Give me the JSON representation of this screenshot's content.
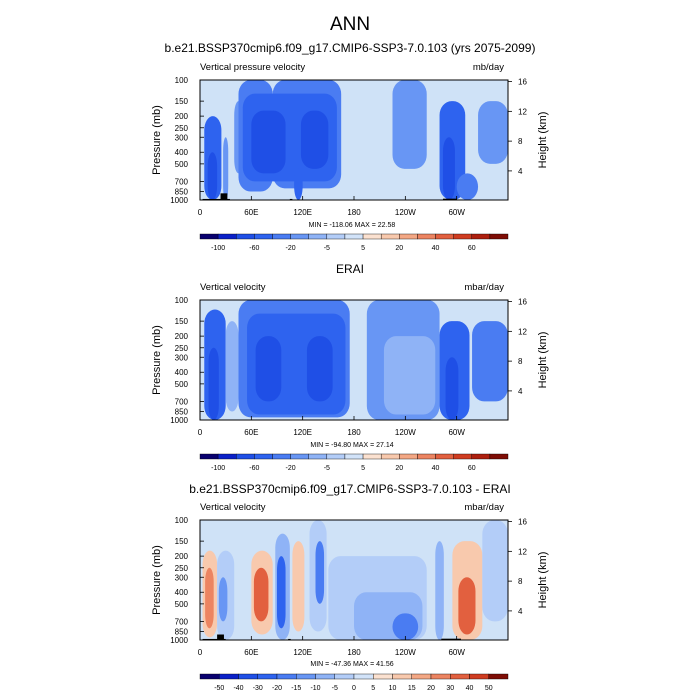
{
  "figure": {
    "title": "ANN"
  },
  "colors": {
    "neutral": "#cfe2f7",
    "frame": "#000000"
  },
  "panels": [
    {
      "title": "b.e21.BSSP370cmip6.f09_g17.CMIP6-SSP3-7.0.103 (yrs 2075-2099)",
      "variable_label": "Vertical pressure velocity",
      "units_label": "mb/day",
      "minmax_label": "MIN = -118.06  MAX = 22.58",
      "colorbar": {
        "labels": [
          "-100",
          "-60",
          "-20",
          "-5",
          "5",
          "20",
          "40",
          "60"
        ],
        "colors": [
          "#08006e",
          "#0a20c8",
          "#1f4fe6",
          "#2e63ef",
          "#4a7cf2",
          "#6896f4",
          "#8fb3f6",
          "#b3cdf8",
          "#d2e3f9",
          "#fbe1d0",
          "#f8c9ad",
          "#f3a784",
          "#ec8461",
          "#e2603f",
          "#cf3c20",
          "#ad1f0e",
          "#7e0d05"
        ]
      }
    },
    {
      "title": "ERAI",
      "variable_label": "Vertical velocity",
      "units_label": "mbar/day",
      "minmax_label": "MIN = -94.80  MAX = 27.14",
      "colorbar": {
        "labels": [
          "-100",
          "-60",
          "-20",
          "-5",
          "5",
          "20",
          "40",
          "60"
        ],
        "colors": [
          "#08006e",
          "#0a20c8",
          "#1f4fe6",
          "#2e63ef",
          "#4a7cf2",
          "#6896f4",
          "#8fb3f6",
          "#b3cdf8",
          "#d2e3f9",
          "#fbe1d0",
          "#f8c9ad",
          "#f3a784",
          "#ec8461",
          "#e2603f",
          "#cf3c20",
          "#ad1f0e",
          "#7e0d05"
        ]
      }
    },
    {
      "title": "b.e21.BSSP370cmip6.f09_g17.CMIP6-SSP3-7.0.103 - ERAI",
      "variable_label": "Vertical velocity",
      "units_label": "mbar/day",
      "minmax_label": "MIN = -47.36  MAX = 41.56",
      "colorbar": {
        "labels": [
          "-50",
          "-40",
          "-30",
          "-20",
          "-15",
          "-10",
          "-5",
          "0",
          "5",
          "10",
          "15",
          "20",
          "30",
          "40",
          "50"
        ],
        "colors": [
          "#08006e",
          "#0a20c8",
          "#1f4fe6",
          "#2e63ef",
          "#4a7cf2",
          "#6896f4",
          "#8fb3f6",
          "#b3cdf8",
          "#d2e3f9",
          "#fbe1d0",
          "#f8c9ad",
          "#f3a784",
          "#ec8461",
          "#e2603f",
          "#cf3c20",
          "#7e0d05"
        ]
      }
    }
  ],
  "chart_data": [
    {
      "type": "heatmap",
      "title": "b.e21.BSSP370cmip6.f09_g17.CMIP6-SSP3-7.0.103 (yrs 2075-2099)",
      "ylabel": "Pressure (mb)",
      "ylabel_right": "Height (km)",
      "x_tick_labels": [
        "0",
        "60E",
        "120E",
        "180",
        "120W",
        "60W"
      ],
      "x_ticks_deg": [
        0,
        60,
        120,
        180,
        240,
        300
      ],
      "xlim": [
        0,
        360
      ],
      "y_tick_labels": [
        "100",
        "150",
        "200",
        "250",
        "300",
        "400",
        "500",
        "700",
        "850",
        "1000"
      ],
      "y_ticks_mb": [
        100,
        150,
        200,
        250,
        300,
        400,
        500,
        700,
        850,
        1000
      ],
      "ylim_mb": [
        100,
        1000
      ],
      "y2_tick_labels": [
        "16",
        "12",
        "8",
        "4"
      ],
      "y2_ticks_km": [
        16,
        12,
        8,
        4
      ],
      "min": -118.06,
      "max": 22.58,
      "regions": [
        {
          "lon": [
            5,
            25
          ],
          "p": [
            200,
            1000
          ],
          "v": -20
        },
        {
          "lon": [
            9,
            20
          ],
          "p": [
            400,
            1000
          ],
          "v": -60
        },
        {
          "lon": [
            27,
            33
          ],
          "p": [
            300,
            1000
          ],
          "v": 5
        },
        {
          "lon": [
            40,
            50
          ],
          "p": [
            150,
            600
          ],
          "v": 5
        },
        {
          "lon": [
            45,
            85
          ],
          "p": [
            100,
            850
          ],
          "v": -5
        },
        {
          "lon": [
            85,
            165
          ],
          "p": [
            100,
            800
          ],
          "v": -5
        },
        {
          "lon": [
            50,
            160
          ],
          "p": [
            130,
            700
          ],
          "v": -20
        },
        {
          "lon": [
            60,
            100
          ],
          "p": [
            180,
            600
          ],
          "v": -60
        },
        {
          "lon": [
            118,
            150
          ],
          "p": [
            180,
            550
          ],
          "v": -60
        },
        {
          "lon": [
            110,
            120
          ],
          "p": [
            550,
            1000
          ],
          "v": -20
        },
        {
          "lon": [
            225,
            265
          ],
          "p": [
            100,
            550
          ],
          "v": 5
        },
        {
          "lon": [
            280,
            310
          ],
          "p": [
            150,
            1000
          ],
          "v": -20
        },
        {
          "lon": [
            284,
            298
          ],
          "p": [
            300,
            1000
          ],
          "v": -60
        },
        {
          "lon": [
            325,
            360
          ],
          "p": [
            150,
            500
          ],
          "v": 5
        },
        {
          "lon": [
            300,
            325
          ],
          "p": [
            600,
            1000
          ],
          "v": -5
        }
      ],
      "topography": [
        {
          "lon": [
            3,
            35
          ],
          "p_top": 980
        },
        {
          "lon": [
            24,
            32
          ],
          "p_top": 880
        },
        {
          "lon": [
            105,
            108
          ],
          "p_top": 980
        },
        {
          "lon": [
            284,
            300
          ],
          "p_top": 975
        }
      ]
    },
    {
      "type": "heatmap",
      "title": "ERAI",
      "ylabel": "Pressure (mb)",
      "ylabel_right": "Height (km)",
      "x_tick_labels": [
        "0",
        "60E",
        "120E",
        "180",
        "120W",
        "60W"
      ],
      "x_ticks_deg": [
        0,
        60,
        120,
        180,
        240,
        300
      ],
      "xlim": [
        0,
        360
      ],
      "y_tick_labels": [
        "100",
        "150",
        "200",
        "250",
        "300",
        "400",
        "500",
        "700",
        "850",
        "1000"
      ],
      "y_ticks_mb": [
        100,
        150,
        200,
        250,
        300,
        400,
        500,
        700,
        850,
        1000
      ],
      "ylim_mb": [
        100,
        1000
      ],
      "y2_tick_labels": [
        "16",
        "12",
        "8",
        "4"
      ],
      "y2_ticks_km": [
        16,
        12,
        8,
        4
      ],
      "min": -94.8,
      "max": 27.14,
      "regions": [
        {
          "lon": [
            5,
            30
          ],
          "p": [
            120,
            1000
          ],
          "v": -20
        },
        {
          "lon": [
            10,
            22
          ],
          "p": [
            250,
            1000
          ],
          "v": -60
        },
        {
          "lon": [
            30,
            45
          ],
          "p": [
            150,
            850
          ],
          "v": 20
        },
        {
          "lon": [
            45,
            175
          ],
          "p": [
            100,
            950
          ],
          "v": -5
        },
        {
          "lon": [
            55,
            170
          ],
          "p": [
            130,
            900
          ],
          "v": -20
        },
        {
          "lon": [
            65,
            95
          ],
          "p": [
            200,
            700
          ],
          "v": -60
        },
        {
          "lon": [
            125,
            155
          ],
          "p": [
            200,
            700
          ],
          "v": -60
        },
        {
          "lon": [
            195,
            280
          ],
          "p": [
            100,
            1000
          ],
          "v": 5
        },
        {
          "lon": [
            215,
            275
          ],
          "p": [
            200,
            900
          ],
          "v": 20
        },
        {
          "lon": [
            280,
            315
          ],
          "p": [
            150,
            1000
          ],
          "v": -20
        },
        {
          "lon": [
            287,
            302
          ],
          "p": [
            300,
            1000
          ],
          "v": -60
        },
        {
          "lon": [
            318,
            360
          ],
          "p": [
            150,
            700
          ],
          "v": -5
        }
      ],
      "topography": []
    },
    {
      "type": "heatmap",
      "title": "b.e21.BSSP370cmip6.f09_g17.CMIP6-SSP3-7.0.103 - ERAI",
      "ylabel": "Pressure (mb)",
      "ylabel_right": "Height (km)",
      "x_tick_labels": [
        "0",
        "60E",
        "120E",
        "180",
        "120W",
        "60W"
      ],
      "x_ticks_deg": [
        0,
        60,
        120,
        180,
        240,
        300
      ],
      "xlim": [
        0,
        360
      ],
      "y_tick_labels": [
        "100",
        "150",
        "200",
        "250",
        "300",
        "400",
        "500",
        "700",
        "850",
        "1000"
      ],
      "y_ticks_mb": [
        100,
        150,
        200,
        250,
        300,
        400,
        500,
        700,
        850,
        1000
      ],
      "ylim_mb": [
        100,
        1000
      ],
      "y2_tick_labels": [
        "16",
        "12",
        "8",
        "4"
      ],
      "y2_ticks_km": [
        16,
        12,
        8,
        4
      ],
      "min": -47.36,
      "max": 41.56,
      "regions": [
        {
          "lon": [
            3,
            20
          ],
          "p": [
            180,
            950
          ],
          "v": 10
        },
        {
          "lon": [
            6,
            16
          ],
          "p": [
            250,
            800
          ],
          "v": 20
        },
        {
          "lon": [
            20,
            40
          ],
          "p": [
            180,
            1000
          ],
          "v": -5
        },
        {
          "lon": [
            22,
            32
          ],
          "p": [
            300,
            700
          ],
          "v": -15
        },
        {
          "lon": [
            60,
            85
          ],
          "p": [
            180,
            900
          ],
          "v": 10
        },
        {
          "lon": [
            63,
            80
          ],
          "p": [
            250,
            700
          ],
          "v": 30
        },
        {
          "lon": [
            88,
            105
          ],
          "p": [
            130,
            1000
          ],
          "v": -10
        },
        {
          "lon": [
            90,
            100
          ],
          "p": [
            200,
            800
          ],
          "v": -30
        },
        {
          "lon": [
            108,
            122
          ],
          "p": [
            150,
            850
          ],
          "v": 10
        },
        {
          "lon": [
            128,
            148
          ],
          "p": [
            100,
            850
          ],
          "v": -5
        },
        {
          "lon": [
            135,
            145
          ],
          "p": [
            150,
            500
          ],
          "v": -20
        },
        {
          "lon": [
            150,
            265
          ],
          "p": [
            200,
            1000
          ],
          "v": -5
        },
        {
          "lon": [
            180,
            260
          ],
          "p": [
            400,
            1000
          ],
          "v": -10
        },
        {
          "lon": [
            225,
            255
          ],
          "p": [
            600,
            1000
          ],
          "v": -20
        },
        {
          "lon": [
            275,
            285
          ],
          "p": [
            150,
            1000
          ],
          "v": -10
        },
        {
          "lon": [
            295,
            330
          ],
          "p": [
            150,
            1000
          ],
          "v": 10
        },
        {
          "lon": [
            302,
            322
          ],
          "p": [
            300,
            900
          ],
          "v": 30
        },
        {
          "lon": [
            330,
            360
          ],
          "p": [
            100,
            700
          ],
          "v": -5
        }
      ],
      "topography": [
        {
          "lon": [
            3,
            30
          ],
          "p_top": 980
        },
        {
          "lon": [
            20,
            28
          ],
          "p_top": 900
        },
        {
          "lon": [
            103,
            106
          ],
          "p_top": 980
        },
        {
          "lon": [
            282,
            305
          ],
          "p_top": 975
        }
      ]
    }
  ]
}
